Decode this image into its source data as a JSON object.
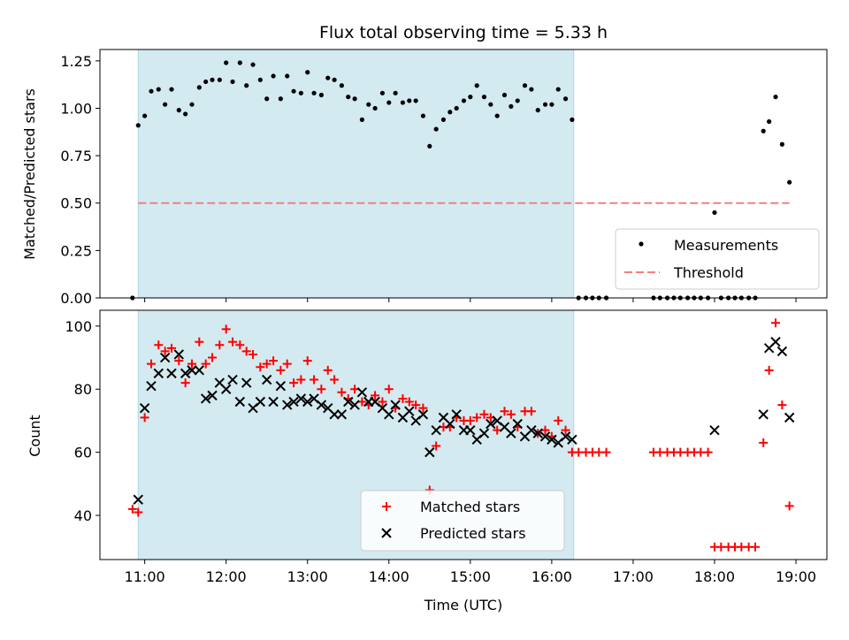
{
  "title": "Flux total observing time = 5.33 h",
  "xlabel": "Time (UTC)",
  "xticks": [
    "11:00",
    "12:00",
    "13:00",
    "14:00",
    "15:00",
    "16:00",
    "17:00",
    "18:00",
    "19:00"
  ],
  "colors": {
    "band": "#d3eaf0",
    "band_edge": "#add8e6",
    "measure": "#000000",
    "threshold": "#f08080",
    "matched": "#ff0000",
    "predicted": "#000000"
  },
  "chart_data": [
    {
      "type": "scatter",
      "panel": "top",
      "ylabel": "Matched/Predicted stars",
      "xlim": [
        10.45,
        19.38
      ],
      "ylim": [
        0,
        1.31
      ],
      "yticks": [
        "0.00",
        "0.25",
        "0.50",
        "0.75",
        "1.00",
        "1.25"
      ],
      "band": [
        10.92,
        16.27
      ],
      "legend_position": "lower right",
      "threshold": {
        "name": "Threshold",
        "y": 0.5,
        "x": [
          10.92,
          18.92
        ]
      },
      "series": [
        {
          "name": "Measurements",
          "x": [
            10.85,
            10.92,
            11.0,
            11.08,
            11.17,
            11.25,
            11.33,
            11.42,
            11.5,
            11.58,
            11.67,
            11.75,
            11.83,
            11.92,
            12.0,
            12.08,
            12.17,
            12.25,
            12.33,
            12.42,
            12.5,
            12.58,
            12.67,
            12.75,
            12.83,
            12.92,
            13.0,
            13.08,
            13.17,
            13.25,
            13.33,
            13.42,
            13.5,
            13.58,
            13.67,
            13.75,
            13.83,
            13.92,
            14.0,
            14.08,
            14.17,
            14.25,
            14.33,
            14.42,
            14.5,
            14.58,
            14.67,
            14.75,
            14.83,
            14.92,
            15.0,
            15.08,
            15.17,
            15.25,
            15.33,
            15.42,
            15.5,
            15.58,
            15.67,
            15.75,
            15.83,
            15.92,
            16.0,
            16.08,
            16.17,
            16.25,
            16.33,
            16.42,
            16.5,
            16.58,
            16.67,
            17.25,
            17.33,
            17.42,
            17.5,
            17.58,
            17.67,
            17.75,
            17.83,
            17.92,
            18.0,
            18.08,
            18.17,
            18.25,
            18.33,
            18.42,
            18.5,
            18.6,
            18.67,
            18.75,
            18.83,
            18.92
          ],
          "y": [
            0.0,
            0.91,
            0.96,
            1.09,
            1.1,
            1.02,
            1.1,
            0.99,
            0.97,
            1.02,
            1.11,
            1.14,
            1.15,
            1.15,
            1.24,
            1.14,
            1.24,
            1.12,
            1.23,
            1.15,
            1.05,
            1.17,
            1.05,
            1.17,
            1.09,
            1.08,
            1.19,
            1.08,
            1.07,
            1.16,
            1.15,
            1.12,
            1.06,
            1.05,
            0.94,
            1.02,
            1.0,
            1.08,
            1.03,
            1.08,
            1.03,
            1.04,
            1.04,
            0.96,
            0.8,
            0.89,
            0.94,
            0.98,
            1.0,
            1.04,
            1.06,
            1.12,
            1.06,
            1.02,
            0.96,
            1.07,
            1.01,
            1.04,
            1.12,
            1.1,
            0.99,
            1.02,
            1.02,
            1.1,
            1.05,
            0.94,
            0.0,
            0.0,
            0.0,
            0.0,
            0.0,
            0.0,
            0.0,
            0.0,
            0.0,
            0.0,
            0.0,
            0.0,
            0.0,
            0.0,
            0.45,
            0.0,
            0.0,
            0.0,
            0.0,
            0.0,
            0.0,
            0.88,
            0.93,
            1.06,
            0.81,
            0.61
          ]
        }
      ]
    },
    {
      "type": "scatter",
      "panel": "bottom",
      "ylabel": "Count",
      "xlim": [
        10.45,
        19.38
      ],
      "ylim": [
        26,
        105
      ],
      "yticks": [
        "40",
        "60",
        "80",
        "100"
      ],
      "band": [
        10.92,
        16.27
      ],
      "legend_position": "lower center",
      "series": [
        {
          "name": "Matched stars",
          "x": [
            10.85,
            10.92,
            11.0,
            11.08,
            11.17,
            11.25,
            11.33,
            11.42,
            11.5,
            11.58,
            11.67,
            11.75,
            11.83,
            11.92,
            12.0,
            12.08,
            12.17,
            12.25,
            12.33,
            12.42,
            12.5,
            12.58,
            12.67,
            12.75,
            12.83,
            12.92,
            13.0,
            13.08,
            13.17,
            13.25,
            13.33,
            13.42,
            13.5,
            13.58,
            13.67,
            13.75,
            13.83,
            13.92,
            14.0,
            14.08,
            14.17,
            14.25,
            14.33,
            14.42,
            14.5,
            14.58,
            14.67,
            14.75,
            14.83,
            14.92,
            15.0,
            15.08,
            15.17,
            15.25,
            15.33,
            15.42,
            15.5,
            15.58,
            15.67,
            15.75,
            15.83,
            15.92,
            16.0,
            16.08,
            16.17,
            16.25,
            16.33,
            16.42,
            16.5,
            16.58,
            16.67,
            17.25,
            17.33,
            17.42,
            17.5,
            17.58,
            17.67,
            17.75,
            17.83,
            17.92,
            18.0,
            18.08,
            18.17,
            18.25,
            18.33,
            18.42,
            18.5,
            18.6,
            18.67,
            18.75,
            18.83,
            18.92
          ],
          "y": [
            42,
            41,
            71,
            88,
            94,
            92,
            93,
            89,
            82,
            88,
            95,
            88,
            90,
            94,
            99,
            95,
            94,
            92,
            91,
            87,
            88,
            89,
            86,
            88,
            82,
            83,
            89,
            83,
            80,
            86,
            83,
            79,
            77,
            80,
            76,
            75,
            78,
            76,
            80,
            74,
            77,
            76,
            75,
            74,
            48,
            62,
            68,
            68,
            71,
            70,
            70,
            71,
            72,
            71,
            67,
            73,
            72,
            68,
            73,
            73,
            66,
            67,
            65,
            70,
            67,
            60,
            60,
            60,
            60,
            60,
            60,
            60,
            60,
            60,
            60,
            60,
            60,
            60,
            60,
            60,
            30,
            30,
            30,
            30,
            30,
            30,
            30,
            63,
            86,
            101,
            75,
            43
          ]
        },
        {
          "name": "Predicted stars",
          "x": [
            10.92,
            11.0,
            11.08,
            11.17,
            11.25,
            11.33,
            11.42,
            11.5,
            11.58,
            11.67,
            11.75,
            11.83,
            11.92,
            12.0,
            12.08,
            12.17,
            12.25,
            12.33,
            12.42,
            12.5,
            12.58,
            12.67,
            12.75,
            12.83,
            12.92,
            13.0,
            13.08,
            13.17,
            13.25,
            13.33,
            13.42,
            13.5,
            13.58,
            13.67,
            13.75,
            13.83,
            13.92,
            14.0,
            14.08,
            14.17,
            14.25,
            14.33,
            14.42,
            14.5,
            14.58,
            14.67,
            14.75,
            14.83,
            14.92,
            15.0,
            15.08,
            15.17,
            15.25,
            15.33,
            15.42,
            15.5,
            15.58,
            15.67,
            15.75,
            15.83,
            15.92,
            16.0,
            16.08,
            16.17,
            16.25,
            18.0,
            18.6,
            18.67,
            18.75,
            18.83,
            18.92
          ],
          "y": [
            45,
            74,
            81,
            85,
            90,
            85,
            91,
            85,
            86,
            86,
            77,
            78,
            82,
            80,
            83,
            76,
            82,
            74,
            76,
            83,
            76,
            81,
            75,
            76,
            77,
            76,
            77,
            75,
            74,
            72,
            72,
            76,
            75,
            79,
            76,
            76,
            74,
            72,
            75,
            71,
            73,
            70,
            72,
            60,
            67,
            71,
            69,
            72,
            67,
            67,
            64,
            66,
            69,
            70,
            68,
            66,
            69,
            65,
            67,
            66,
            65,
            64,
            63,
            65,
            64,
            67,
            72,
            93,
            95,
            92,
            71
          ]
        }
      ]
    }
  ]
}
